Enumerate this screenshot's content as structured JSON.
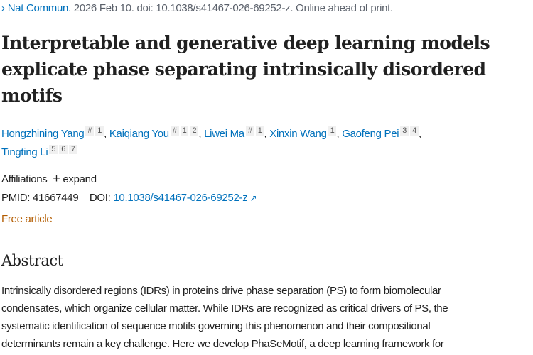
{
  "citation": {
    "journal": "Nat Commun.",
    "rest": " 2026 Feb 10. doi: 10.1038/s41467-026-69252-z. Online ahead of print."
  },
  "title": "Interpretable and generative deep learning models explicate phase separating intrinsically disordered motifs",
  "authors": [
    {
      "name": "Hongzhining Yang",
      "sups": [
        "#",
        "1"
      ]
    },
    {
      "name": "Kaiqiang You",
      "sups": [
        "#",
        "1",
        "2"
      ]
    },
    {
      "name": "Liwei Ma",
      "sups": [
        "#",
        "1"
      ]
    },
    {
      "name": "Xinxin Wang",
      "sups": [
        "1"
      ]
    },
    {
      "name": "Gaofeng Pei",
      "sups": [
        "3",
        "4"
      ]
    },
    {
      "name": "Tingting Li",
      "sups": [
        "5",
        "6",
        "7"
      ]
    }
  ],
  "affiliations": {
    "label": "Affiliations",
    "expand": "expand"
  },
  "pmid": {
    "label": "PMID:",
    "value": "41667449"
  },
  "doi": {
    "label": "DOI:",
    "value": "10.1038/s41467-026-69252-z"
  },
  "free": "Free article",
  "abstract": {
    "heading": "Abstract",
    "lines": [
      "Intrinsically disordered regions (IDRs) in proteins drive phase separation (PS) to form biomolecular",
      "condensates, which organize cellular matter. While IDRs are recognized as critical drivers of PS, the",
      "systematic identification of sequence motifs governing this phenomenon and their compositional",
      "determinants remain a key challenge. Here we develop PhaSeMotif, a deep learning framework for"
    ]
  }
}
